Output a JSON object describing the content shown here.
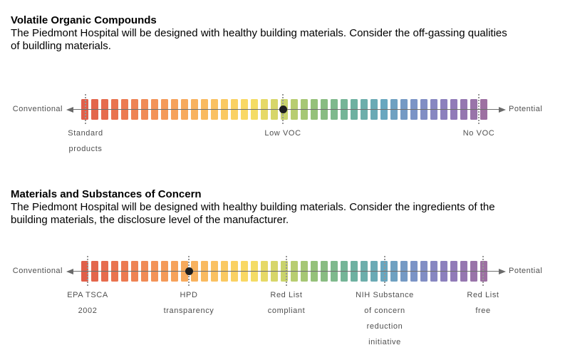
{
  "sections": [
    {
      "title": "Volatile Organic Compounds",
      "body_lines": [
        "The Piedmont Hospital will be designed with healthy building materials. Consider the off-gassing qualities",
        "of buildling materials."
      ],
      "scale": {
        "left_label": "Conventional",
        "right_label": "Potential",
        "markers": [
          {
            "pos": 6,
            "type": "tick",
            "lines": [
              "Standard",
              "products"
            ]
          },
          {
            "pos": 283,
            "type": "dot",
            "lines": [
              "Low VOC"
            ]
          },
          {
            "pos": 558,
            "type": "tick",
            "lines": [
              "No VOC"
            ]
          }
        ]
      }
    },
    {
      "title": "Materials and Substances of Concern",
      "body_lines": [
        "The Piedmont Hospital will be designed with healthy building materials. Consider the ingredients of the",
        "building materials, the disclosure level of the manufacturer."
      ],
      "scale": {
        "left_label": "Conventional",
        "right_label": "Potential",
        "markers": [
          {
            "pos": 9,
            "type": "tick",
            "lines": [
              "EPA TSCA",
              "2002"
            ]
          },
          {
            "pos": 151,
            "type": "dot",
            "lines": [
              "HPD",
              "transparency"
            ]
          },
          {
            "pos": 288,
            "type": "tick",
            "lines": [
              "Red List",
              "compliant"
            ]
          },
          {
            "pos": 426,
            "type": "tick",
            "lines": [
              "NIH Substance",
              "of concern",
              "reduction",
              "initiative"
            ]
          },
          {
            "pos": 564,
            "type": "tick",
            "lines": [
              "Red List",
              "free"
            ]
          }
        ]
      }
    }
  ],
  "scale_style": {
    "segment_count": 41,
    "gradient_stops": [
      "#e05f4a",
      "#ea7550",
      "#f29057",
      "#f7aa5d",
      "#fac462",
      "#f9dd64",
      "#c9d36c",
      "#8fbf7b",
      "#6fb29e",
      "#69a7bf",
      "#7d92c7",
      "#907cba",
      "#9d70a2"
    ],
    "axis_color": "#6f6f6f",
    "arrow_color": "#6a6a6a",
    "tick_color": "#979797",
    "dot_color": "#1f1f1f",
    "label_color": "#4f4f4f"
  }
}
